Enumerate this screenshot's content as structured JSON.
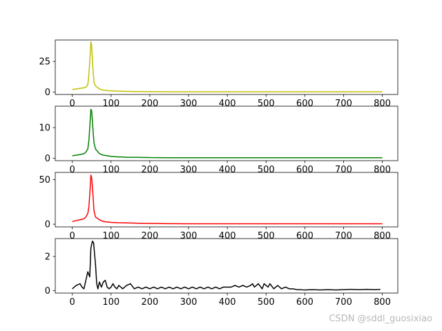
{
  "watermark": "CSDN @sddl_guosixiao",
  "chart_data": [
    {
      "type": "line",
      "color": "#bfbf00",
      "xlim": [
        -44,
        840
      ],
      "ylim": [
        -2,
        42.5
      ],
      "xticks": [
        0,
        100,
        200,
        300,
        400,
        500,
        600,
        700,
        800
      ],
      "yticks": [
        0,
        25
      ],
      "x": [
        0,
        10,
        20,
        30,
        35,
        40,
        43,
        46,
        48,
        50,
        53,
        56,
        60,
        70,
        80,
        90,
        100,
        110,
        120,
        130,
        140,
        150,
        160,
        170,
        180,
        190,
        200,
        250,
        300,
        350,
        400,
        450,
        500,
        550,
        600,
        650,
        700,
        750,
        800
      ],
      "values": [
        2,
        2.5,
        3,
        3.5,
        4,
        6,
        15,
        30,
        41,
        38,
        20,
        8,
        5,
        2.5,
        1.5,
        1.2,
        1,
        0.8,
        0.7,
        0.6,
        0.5,
        0.5,
        0.4,
        0.4,
        0.4,
        0.3,
        0.3,
        0.2,
        0.2,
        0.2,
        0.2,
        0.2,
        0.2,
        0.2,
        0.2,
        0.2,
        0.2,
        0.2,
        0.2
      ]
    },
    {
      "type": "line",
      "color": "#008000",
      "xlim": [
        -44,
        840
      ],
      "ylim": [
        -0.8,
        17
      ],
      "xticks": [
        0,
        100,
        200,
        300,
        400,
        500,
        600,
        700,
        800
      ],
      "yticks": [
        0,
        10
      ],
      "x": [
        0,
        10,
        20,
        30,
        35,
        40,
        43,
        46,
        48,
        50,
        53,
        56,
        60,
        70,
        80,
        90,
        100,
        110,
        120,
        130,
        140,
        150,
        160,
        170,
        180,
        190,
        200,
        250,
        300,
        350,
        400,
        450,
        500,
        550,
        600,
        650,
        700,
        750,
        800
      ],
      "values": [
        0.8,
        1,
        1.2,
        1.5,
        2,
        3,
        6,
        12,
        16,
        15.5,
        10,
        5,
        3,
        1.5,
        1,
        0.8,
        0.6,
        0.5,
        0.4,
        0.4,
        0.3,
        0.3,
        0.3,
        0.3,
        0.25,
        0.25,
        0.2,
        0.15,
        0.15,
        0.15,
        0.15,
        0.15,
        0.15,
        0.15,
        0.15,
        0.15,
        0.15,
        0.15,
        0.15
      ]
    },
    {
      "type": "line",
      "color": "#ff0000",
      "xlim": [
        -44,
        840
      ],
      "ylim": [
        -3,
        58
      ],
      "xticks": [
        0,
        100,
        200,
        300,
        400,
        500,
        600,
        700,
        800
      ],
      "yticks": [
        0,
        50
      ],
      "x": [
        0,
        10,
        20,
        30,
        35,
        40,
        43,
        46,
        48,
        50,
        53,
        56,
        60,
        70,
        80,
        90,
        100,
        110,
        120,
        130,
        140,
        150,
        160,
        170,
        180,
        190,
        200,
        250,
        300,
        350,
        400,
        450,
        500,
        550,
        600,
        650,
        700,
        750,
        800
      ],
      "values": [
        3,
        4,
        5,
        6,
        8,
        12,
        20,
        40,
        55,
        52,
        35,
        15,
        8,
        5,
        3,
        2.5,
        2,
        1.8,
        1.6,
        1.5,
        1.4,
        1.3,
        1.2,
        1.1,
        1,
        1,
        0.9,
        0.6,
        0.5,
        0.5,
        0.5,
        0.5,
        0.5,
        0.5,
        0.5,
        0.5,
        0.5,
        0.5,
        0.5
      ]
    },
    {
      "type": "line",
      "color": "#000000",
      "xlim": [
        -44,
        840
      ],
      "ylim": [
        -0.15,
        3.05
      ],
      "xticks": [
        0,
        100,
        200,
        300,
        400,
        500,
        600,
        700,
        800
      ],
      "yticks": [
        0,
        2
      ],
      "x": [
        0,
        10,
        20,
        25,
        30,
        35,
        40,
        45,
        48,
        52,
        55,
        60,
        63,
        66,
        70,
        75,
        80,
        85,
        90,
        95,
        100,
        105,
        110,
        115,
        120,
        125,
        130,
        140,
        150,
        160,
        170,
        180,
        190,
        200,
        210,
        220,
        230,
        240,
        250,
        260,
        270,
        280,
        290,
        300,
        310,
        320,
        330,
        340,
        350,
        360,
        370,
        380,
        390,
        400,
        410,
        420,
        430,
        440,
        450,
        460,
        465,
        470,
        480,
        490,
        495,
        500,
        505,
        510,
        520,
        530,
        540,
        550,
        560,
        570,
        580,
        590,
        600,
        620,
        640,
        660,
        680,
        700,
        720,
        740,
        760,
        780,
        795
      ],
      "values": [
        0.1,
        0.3,
        0.4,
        0.2,
        0.1,
        0.6,
        1.1,
        0.8,
        2.5,
        2.9,
        2.8,
        1.5,
        0.4,
        0.1,
        0.5,
        0.2,
        0.5,
        0.6,
        0.2,
        0.1,
        0.2,
        0.4,
        0.2,
        0.1,
        0.3,
        0.2,
        0.1,
        0.3,
        0.4,
        0.1,
        0.2,
        0.1,
        0.2,
        0.1,
        0.2,
        0.1,
        0.2,
        0.1,
        0.2,
        0.1,
        0.2,
        0.1,
        0.2,
        0.1,
        0.2,
        0.1,
        0.2,
        0.1,
        0.2,
        0.1,
        0.2,
        0.1,
        0.2,
        0.2,
        0.2,
        0.3,
        0.2,
        0.3,
        0.2,
        0.3,
        0.4,
        0.2,
        0.4,
        0.1,
        0.4,
        0.3,
        0.2,
        0.4,
        0.1,
        0.3,
        0.1,
        0.2,
        0.1,
        0.1,
        0.05,
        0.05,
        0.03,
        0.05,
        0.03,
        0.05,
        0.03,
        0.05,
        0.07,
        0.05,
        0.07,
        0.05,
        0.07
      ]
    }
  ]
}
